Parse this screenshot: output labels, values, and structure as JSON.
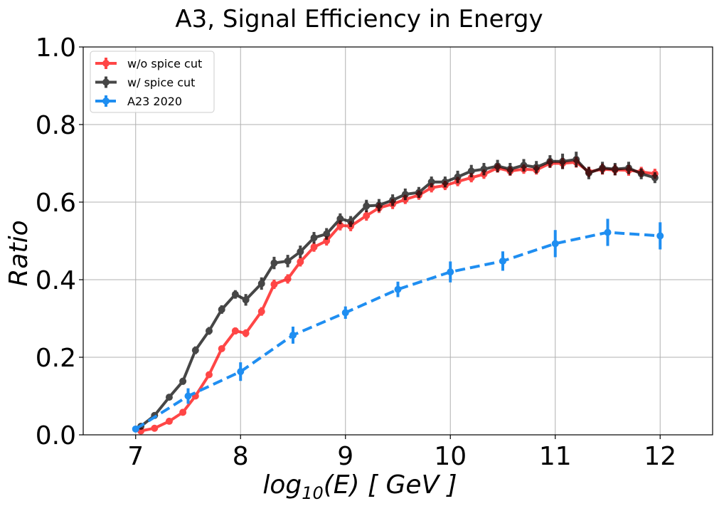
{
  "chart_data": {
    "type": "line",
    "title": "A3, Signal Efficiency in Energy",
    "xlabel": {
      "prefix": "log",
      "sub": "10",
      "suffix": "(E) [ GeV ]"
    },
    "ylabel": "Ratio",
    "xlim": [
      6.5,
      12.5
    ],
    "ylim": [
      0.0,
      1.0
    ],
    "xticks": [
      7,
      8,
      9,
      10,
      11,
      12
    ],
    "yticks": [
      0.0,
      0.2,
      0.4,
      0.6,
      0.8,
      1.0
    ],
    "xtick_labels": [
      "7",
      "8",
      "9",
      "10",
      "11",
      "12"
    ],
    "ytick_labels": [
      "0.0",
      "0.2",
      "0.4",
      "0.6",
      "0.8",
      "1.0"
    ],
    "grid": true,
    "legend_position": "top-left",
    "series": [
      {
        "name": "w/o spice cut",
        "color": "#ff0000",
        "dashed": false,
        "x": [
          7.05,
          7.18,
          7.32,
          7.45,
          7.57,
          7.7,
          7.82,
          7.95,
          8.05,
          8.2,
          8.32,
          8.45,
          8.57,
          8.7,
          8.82,
          8.95,
          9.05,
          9.2,
          9.32,
          9.45,
          9.57,
          9.7,
          9.82,
          9.95,
          10.07,
          10.2,
          10.32,
          10.45,
          10.57,
          10.7,
          10.82,
          10.95,
          11.07,
          11.2,
          11.32,
          11.45,
          11.57,
          11.7,
          11.82,
          11.95
        ],
        "values": [
          0.01,
          0.017,
          0.035,
          0.058,
          0.1,
          0.155,
          0.222,
          0.268,
          0.262,
          0.318,
          0.388,
          0.402,
          0.446,
          0.484,
          0.5,
          0.54,
          0.538,
          0.565,
          0.585,
          0.595,
          0.607,
          0.618,
          0.637,
          0.643,
          0.653,
          0.663,
          0.672,
          0.688,
          0.68,
          0.685,
          0.683,
          0.7,
          0.7,
          0.703,
          0.678,
          0.685,
          0.683,
          0.682,
          0.678,
          0.673
        ],
        "errors": [
          0.004,
          0.004,
          0.005,
          0.006,
          0.007,
          0.008,
          0.008,
          0.009,
          0.01,
          0.011,
          0.012,
          0.012,
          0.012,
          0.012,
          0.012,
          0.013,
          0.013,
          0.013,
          0.013,
          0.013,
          0.012,
          0.012,
          0.012,
          0.012,
          0.012,
          0.012,
          0.012,
          0.012,
          0.012,
          0.012,
          0.012,
          0.012,
          0.014,
          0.014,
          0.013,
          0.014,
          0.014,
          0.014,
          0.013,
          0.013
        ]
      },
      {
        "name": "w/ spice cut",
        "color": "#000000",
        "dashed": false,
        "x": [
          7.05,
          7.18,
          7.32,
          7.45,
          7.57,
          7.7,
          7.82,
          7.95,
          8.05,
          8.2,
          8.32,
          8.45,
          8.57,
          8.7,
          8.82,
          8.95,
          9.05,
          9.2,
          9.32,
          9.45,
          9.57,
          9.7,
          9.82,
          9.95,
          10.07,
          10.2,
          10.32,
          10.45,
          10.57,
          10.7,
          10.82,
          10.95,
          11.07,
          11.2,
          11.32,
          11.45,
          11.57,
          11.7,
          11.82,
          11.95
        ],
        "values": [
          0.022,
          0.05,
          0.097,
          0.138,
          0.218,
          0.268,
          0.323,
          0.362,
          0.348,
          0.39,
          0.443,
          0.448,
          0.472,
          0.508,
          0.518,
          0.557,
          0.55,
          0.59,
          0.592,
          0.605,
          0.62,
          0.625,
          0.652,
          0.652,
          0.665,
          0.68,
          0.685,
          0.693,
          0.685,
          0.695,
          0.69,
          0.705,
          0.705,
          0.71,
          0.675,
          0.688,
          0.685,
          0.688,
          0.673,
          0.663
        ],
        "errors": [
          0.005,
          0.007,
          0.008,
          0.009,
          0.01,
          0.01,
          0.011,
          0.011,
          0.015,
          0.016,
          0.016,
          0.016,
          0.016,
          0.015,
          0.015,
          0.014,
          0.014,
          0.016,
          0.016,
          0.015,
          0.015,
          0.014,
          0.014,
          0.014,
          0.016,
          0.016,
          0.016,
          0.016,
          0.016,
          0.016,
          0.016,
          0.016,
          0.02,
          0.02,
          0.016,
          0.016,
          0.016,
          0.016,
          0.014,
          0.014
        ]
      },
      {
        "name": "A23 2020",
        "color": "#1f8ef1",
        "dashed": true,
        "x": [
          7.0,
          7.5,
          8.0,
          8.5,
          9.0,
          9.5,
          10.0,
          10.5,
          11.0,
          11.5,
          12.0
        ],
        "values": [
          0.015,
          0.1,
          0.163,
          0.257,
          0.315,
          0.375,
          0.42,
          0.448,
          0.493,
          0.522,
          0.513
        ],
        "errors": [
          0.005,
          0.02,
          0.024,
          0.022,
          0.016,
          0.02,
          0.027,
          0.025,
          0.035,
          0.035,
          0.035
        ]
      }
    ]
  }
}
